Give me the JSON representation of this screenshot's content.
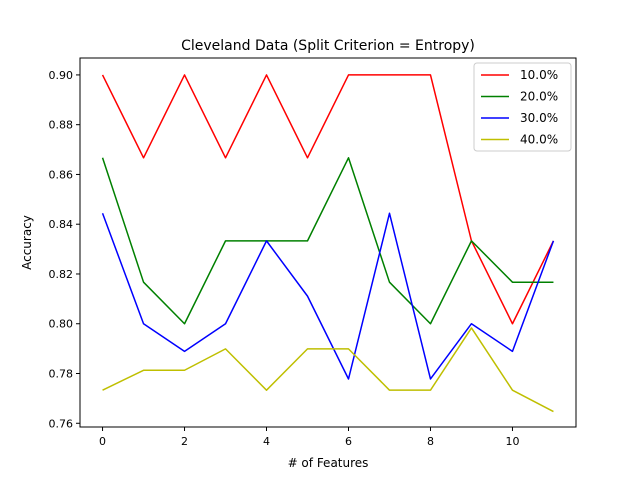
{
  "chart_data": {
    "type": "line",
    "title": "Cleveland Data (Split Criterion = Entropy)",
    "xlabel": "# of Features",
    "ylabel": "Accuracy",
    "x": [
      0,
      1,
      2,
      3,
      4,
      5,
      6,
      7,
      8,
      9,
      10,
      11
    ],
    "xlim": [
      -0.55,
      11.55
    ],
    "ylim": [
      0.7585,
      0.9068
    ],
    "xticks": [
      0,
      2,
      4,
      6,
      8,
      10
    ],
    "xtick_labels": [
      "0",
      "2",
      "4",
      "6",
      "8",
      "10"
    ],
    "yticks": [
      0.76,
      0.78,
      0.8,
      0.82,
      0.84,
      0.86,
      0.88,
      0.9
    ],
    "ytick_labels": [
      "0.76",
      "0.78",
      "0.80",
      "0.82",
      "0.84",
      "0.86",
      "0.88",
      "0.90"
    ],
    "grid": false,
    "legend_position": "top-right",
    "series": [
      {
        "name": "10.0%",
        "color": "#ff0000",
        "values": [
          0.9,
          0.8667,
          0.9,
          0.8667,
          0.9,
          0.8667,
          0.9,
          0.9,
          0.9,
          0.8333,
          0.8,
          0.8333
        ]
      },
      {
        "name": "20.0%",
        "color": "#008000",
        "values": [
          0.8667,
          0.8167,
          0.8,
          0.8333,
          0.8333,
          0.8333,
          0.8667,
          0.8167,
          0.8,
          0.8333,
          0.8167,
          0.8167
        ]
      },
      {
        "name": "30.0%",
        "color": "#0000ff",
        "values": [
          0.8444,
          0.8,
          0.7889,
          0.8,
          0.8333,
          0.8111,
          0.7778,
          0.8444,
          0.7778,
          0.8,
          0.7889,
          0.8333
        ]
      },
      {
        "name": "40.0%",
        "color": "#bfbf00",
        "values": [
          0.7733,
          0.7813,
          0.7813,
          0.7899,
          0.7733,
          0.7899,
          0.7899,
          0.7733,
          0.7733,
          0.7983,
          0.7733,
          0.7647
        ]
      }
    ]
  }
}
